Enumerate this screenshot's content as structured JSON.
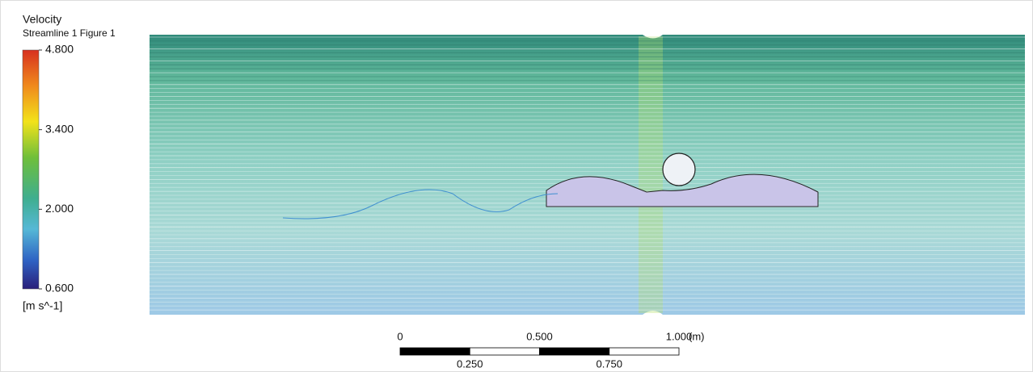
{
  "legend": {
    "title": "Velocity",
    "subtitle": "Streamline 1 Figure 1",
    "range": [
      0.6,
      4.8
    ],
    "ticks": [
      {
        "value": 4.8,
        "label": "4.800"
      },
      {
        "value": 3.4,
        "label": "3.400"
      },
      {
        "value": 2.0,
        "label": "2.000"
      },
      {
        "value": 0.6,
        "label": "0.600"
      }
    ],
    "unit": "[m s^-1]"
  },
  "scale_bar": {
    "range": [
      0,
      1
    ],
    "top_ticks": [
      0,
      {
        "value": 0.5,
        "label": "0.500"
      },
      {
        "value": 1.0,
        "label": "1.000"
      }
    ],
    "bottom_ticks": [
      {
        "value": 0.25,
        "label": "0.250"
      },
      {
        "value": 0.75,
        "label": "0.750"
      }
    ],
    "unit": "(m)"
  }
}
